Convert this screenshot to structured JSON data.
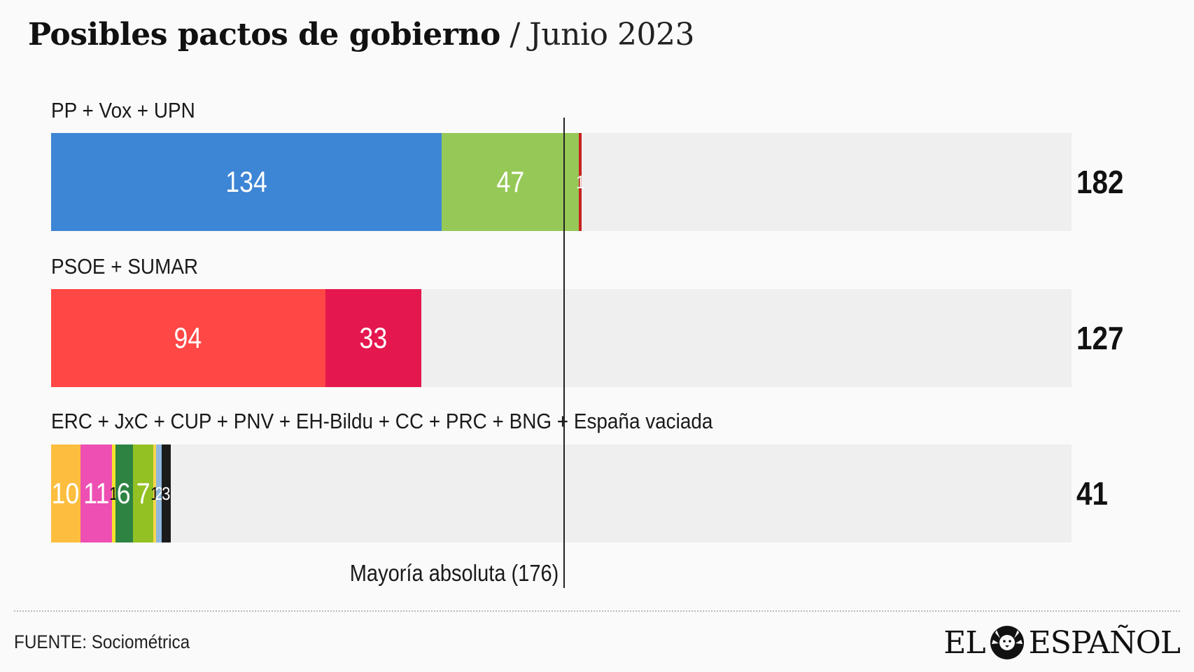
{
  "header": {
    "title": "Posibles pactos de gobierno",
    "separator": "/",
    "subtitle": "Junio 2023"
  },
  "chart_data": {
    "type": "bar",
    "orientation": "horizontal",
    "stacked": true,
    "xlim": [
      0,
      350
    ],
    "reference_line": {
      "value": 176,
      "label": "Mayoría absoluta (176)"
    },
    "rows": [
      {
        "label": "PP + Vox + UPN",
        "total": "182",
        "segments": [
          {
            "value": 134,
            "color": "#3d85d5"
          },
          {
            "value": 47,
            "color": "#96c857"
          },
          {
            "value": 1,
            "color": "#c8201f"
          }
        ]
      },
      {
        "label": "PSOE + SUMAR",
        "total": "127",
        "segments": [
          {
            "value": 94,
            "color": "#ff4745"
          },
          {
            "value": 33,
            "color": "#e5174f"
          }
        ]
      },
      {
        "label": "ERC + JxC + CUP + PNV + EH-Bildu + CC + PRC + BNG + España vaciada",
        "total": "41",
        "segments": [
          {
            "value": 10,
            "color": "#fdbe3f"
          },
          {
            "value": 11,
            "color": "#ee4fb3"
          },
          {
            "value": 1,
            "color": "#f3e22c",
            "dark_text": true
          },
          {
            "value": 6,
            "color": "#2e8343"
          },
          {
            "value": 7,
            "color": "#93c123"
          },
          {
            "value": 1,
            "color": "#f8d54e",
            "dark_text": true
          },
          {
            "value": 2,
            "color": "#8fb7e0"
          },
          {
            "value": 3,
            "color": "#1b1b1b"
          }
        ]
      }
    ]
  },
  "footer": {
    "source": "FUENTE: Sociométrica",
    "logo": "EL ESPAÑOL",
    "logo_left": "EL",
    "logo_right": "ESPAÑOL"
  }
}
